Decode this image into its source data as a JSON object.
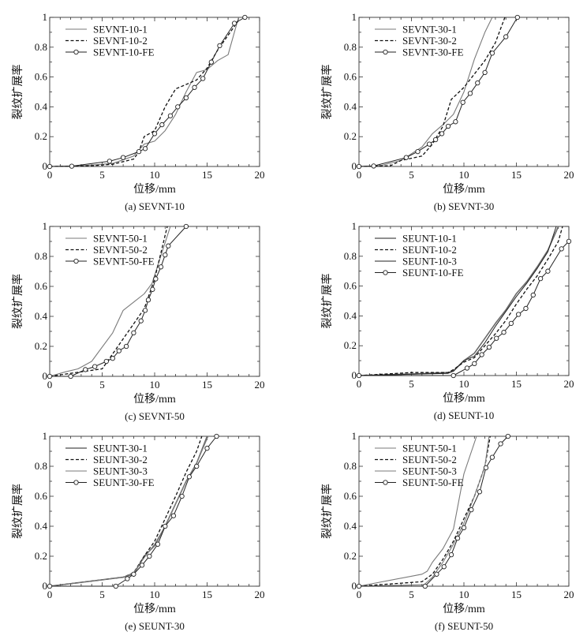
{
  "chart_data": [
    {
      "type": "line",
      "panel": "a",
      "caption": "(a) SEVNT-10",
      "xlabel": "位移/mm",
      "ylabel": "裂纹扩展率",
      "xlim": [
        0,
        20
      ],
      "ylim": [
        0,
        1
      ],
      "xticks": [
        "0",
        "5",
        "10",
        "15",
        "20"
      ],
      "yticks": [
        "0",
        "0.2",
        "0.4",
        "0.6",
        "0.8",
        "1"
      ],
      "legend": "top-left",
      "series": [
        {
          "name": "SEVNT-10-1",
          "style": "gray",
          "x": [
            0,
            3,
            6,
            8,
            9,
            10,
            11,
            12,
            13,
            14,
            15,
            16,
            17,
            18
          ],
          "y": [
            0,
            0.005,
            0.02,
            0.07,
            0.15,
            0.17,
            0.24,
            0.35,
            0.5,
            0.63,
            0.65,
            0.71,
            0.75,
            1
          ]
        },
        {
          "name": "SEVNT-10-2",
          "style": "dashed",
          "x": [
            0,
            4,
            6,
            8,
            8.5,
            9,
            10,
            11,
            12,
            14,
            15,
            16,
            17,
            18
          ],
          "y": [
            0,
            0.005,
            0.015,
            0.05,
            0.1,
            0.2,
            0.24,
            0.4,
            0.52,
            0.58,
            0.66,
            0.78,
            0.88,
            0.98
          ]
        },
        {
          "name": "SEVNT-10-FE",
          "style": "fe",
          "x": [
            0,
            2.1,
            5.7,
            7,
            8.5,
            9.1,
            10,
            10.7,
            11.5,
            12.2,
            13,
            13.8,
            14.6,
            15.4,
            16.2,
            17.6,
            18.6
          ],
          "y": [
            0,
            0.002,
            0.035,
            0.06,
            0.1,
            0.12,
            0.22,
            0.28,
            0.34,
            0.4,
            0.46,
            0.53,
            0.59,
            0.7,
            0.81,
            0.96,
            1
          ]
        }
      ]
    },
    {
      "type": "line",
      "panel": "b",
      "caption": "(b) SEVNT-30",
      "xlabel": "位移/mm",
      "ylabel": "裂纹扩展率",
      "xlim": [
        0,
        20
      ],
      "ylim": [
        0,
        1
      ],
      "xticks": [
        "0",
        "5",
        "10",
        "15",
        "20"
      ],
      "yticks": [
        "0",
        "0.2",
        "0.4",
        "0.6",
        "0.8",
        "1"
      ],
      "legend": "top-left",
      "series": [
        {
          "name": "SEVNT-30-1",
          "style": "gray",
          "x": [
            0,
            2,
            4,
            6,
            7,
            8,
            9,
            10,
            11,
            12,
            12.7
          ],
          "y": [
            0,
            0.005,
            0.04,
            0.13,
            0.22,
            0.28,
            0.35,
            0.5,
            0.72,
            0.9,
            1
          ]
        },
        {
          "name": "SEVNT-30-2",
          "style": "dashed",
          "x": [
            0,
            3,
            4,
            6,
            7,
            8,
            8.8,
            10,
            11,
            12,
            13,
            13.9
          ],
          "y": [
            0,
            0.005,
            0.04,
            0.07,
            0.15,
            0.27,
            0.45,
            0.53,
            0.62,
            0.71,
            0.83,
            1
          ]
        },
        {
          "name": "SEVNT-30-FE",
          "style": "fe",
          "x": [
            0,
            1.4,
            4.5,
            5.6,
            6.7,
            7.3,
            7.9,
            8.5,
            9.2,
            9.9,
            10.6,
            11.3,
            12,
            12.7,
            14,
            15.1
          ],
          "y": [
            0,
            0.003,
            0.06,
            0.1,
            0.15,
            0.18,
            0.22,
            0.27,
            0.3,
            0.43,
            0.49,
            0.56,
            0.63,
            0.76,
            0.87,
            1
          ]
        }
      ]
    },
    {
      "type": "line",
      "panel": "c",
      "caption": "(c) SEVNT-50",
      "xlabel": "位移/mm",
      "ylabel": "裂纹扩展率",
      "xlim": [
        0,
        20
      ],
      "ylim": [
        0,
        1
      ],
      "xticks": [
        "0",
        "5",
        "10",
        "15",
        "20"
      ],
      "yticks": [
        "0",
        "0.2",
        "0.4",
        "0.6",
        "0.8",
        "1"
      ],
      "legend": "top-left",
      "series": [
        {
          "name": "SEVNT-50-1",
          "style": "gray",
          "x": [
            0,
            1.5,
            2.7,
            4,
            6,
            7,
            9,
            9.75,
            11.5
          ],
          "y": [
            0,
            0.03,
            0.05,
            0.1,
            0.29,
            0.44,
            0.55,
            0.62,
            1
          ]
        },
        {
          "name": "SEVNT-50-2",
          "style": "dashed",
          "x": [
            0,
            2,
            5,
            5.5,
            7,
            9,
            10,
            11.2
          ],
          "y": [
            0,
            0.02,
            0.05,
            0.1,
            0.25,
            0.45,
            0.65,
            1
          ]
        },
        {
          "name": "SEVNT-50-FE",
          "style": "fe",
          "x": [
            0,
            2,
            3.4,
            4.3,
            5.4,
            6,
            6.6,
            7.3,
            8,
            8.7,
            9.1,
            9.4,
            9.8,
            10.1,
            10.6,
            11,
            11.3,
            13
          ],
          "y": [
            0,
            0,
            0.045,
            0.065,
            0.1,
            0.12,
            0.17,
            0.2,
            0.29,
            0.37,
            0.44,
            0.51,
            0.58,
            0.65,
            0.73,
            0.81,
            0.87,
            1
          ]
        }
      ]
    },
    {
      "type": "line",
      "panel": "d",
      "caption": "(d) SEUNT-10",
      "xlabel": "位移/mm",
      "ylabel": "裂纹扩展率",
      "xlim": [
        0,
        20
      ],
      "ylim": [
        0,
        1
      ],
      "xticks": [
        "0",
        "5",
        "10",
        "15",
        "20"
      ],
      "yticks": [
        "0",
        "0.2",
        "0.4",
        "0.6",
        "0.8",
        "1"
      ],
      "legend": "top-left",
      "series": [
        {
          "name": "SEUNT-10-1",
          "style": "gray-thick",
          "x": [
            0,
            5,
            8.5,
            9,
            10,
            11,
            12,
            13,
            14,
            15,
            16,
            17,
            18,
            19
          ],
          "y": [
            0,
            0.01,
            0.02,
            0.03,
            0.1,
            0.15,
            0.25,
            0.35,
            0.44,
            0.55,
            0.63,
            0.73,
            0.84,
            1
          ]
        },
        {
          "name": "SEUNT-10-2",
          "style": "dashed",
          "x": [
            0,
            5,
            8.5,
            9,
            10,
            11,
            12,
            13,
            14,
            15,
            16,
            17,
            18,
            19,
            19.4
          ],
          "y": [
            0,
            0.02,
            0.02,
            0.04,
            0.09,
            0.12,
            0.2,
            0.28,
            0.37,
            0.48,
            0.58,
            0.67,
            0.78,
            0.9,
            1
          ]
        },
        {
          "name": "SEUNT-10-3",
          "style": "black",
          "x": [
            0,
            8.5,
            9,
            10,
            11,
            12,
            13,
            14,
            15,
            16,
            17,
            18,
            18.8
          ],
          "y": [
            0,
            0.015,
            0.03,
            0.1,
            0.13,
            0.22,
            0.33,
            0.43,
            0.53,
            0.62,
            0.72,
            0.83,
            1
          ]
        },
        {
          "name": "SEUNT-10-FE",
          "style": "fe",
          "x": [
            0,
            9,
            10.3,
            11,
            11.7,
            12.4,
            13.1,
            13.8,
            14.5,
            15.2,
            15.9,
            16.6,
            17.3,
            18,
            19.3,
            20
          ],
          "y": [
            0,
            0,
            0.05,
            0.08,
            0.14,
            0.19,
            0.25,
            0.29,
            0.35,
            0.41,
            0.45,
            0.54,
            0.65,
            0.7,
            0.85,
            0.9
          ]
        }
      ]
    },
    {
      "type": "line",
      "panel": "e",
      "caption": "(e) SEUNT-30",
      "xlabel": "位移/mm",
      "ylabel": "裂纹扩展率",
      "xlim": [
        0,
        20
      ],
      "ylim": [
        0,
        1
      ],
      "xticks": [
        "0",
        "5",
        "10",
        "15",
        "20"
      ],
      "yticks": [
        "0",
        "0.2",
        "0.4",
        "0.6",
        "0.8",
        "1"
      ],
      "legend": "top-left",
      "series": [
        {
          "name": "SEUNT-30-1",
          "style": "gray-thick",
          "x": [
            0,
            7,
            8,
            9,
            10,
            11,
            12,
            13,
            14,
            15
          ],
          "y": [
            0,
            0.06,
            0.08,
            0.2,
            0.27,
            0.4,
            0.55,
            0.7,
            0.82,
            1
          ]
        },
        {
          "name": "SEUNT-30-2",
          "style": "dashed",
          "x": [
            0,
            7,
            8,
            9,
            10,
            11,
            12,
            13,
            14,
            14.5
          ],
          "y": [
            0,
            0.06,
            0.09,
            0.2,
            0.3,
            0.45,
            0.6,
            0.76,
            0.9,
            1
          ]
        },
        {
          "name": "SEUNT-30-3",
          "style": "gray",
          "x": [
            0,
            7,
            8,
            9,
            10,
            11,
            12,
            13,
            14,
            15.1
          ],
          "y": [
            0,
            0.06,
            0.09,
            0.19,
            0.28,
            0.4,
            0.55,
            0.7,
            0.82,
            1
          ]
        },
        {
          "name": "SEUNT-30-FE",
          "style": "fe",
          "x": [
            0,
            6.3,
            7.4,
            8,
            8.8,
            9.5,
            10.3,
            11,
            11.8,
            12.6,
            13.3,
            14,
            15,
            15.9
          ],
          "y": [
            0,
            0,
            0.05,
            0.08,
            0.14,
            0.2,
            0.28,
            0.4,
            0.47,
            0.6,
            0.73,
            0.8,
            0.92,
            1
          ]
        }
      ]
    },
    {
      "type": "line",
      "panel": "f",
      "caption": "(f) SEUNT-50",
      "xlabel": "位移/mm",
      "ylabel": "裂纹扩展率",
      "xlim": [
        0,
        20
      ],
      "ylim": [
        0,
        1
      ],
      "xticks": [
        "0",
        "5",
        "10",
        "15",
        "20"
      ],
      "yticks": [
        "0",
        "0.2",
        "0.4",
        "0.6",
        "0.8",
        "1"
      ],
      "legend": "top-left",
      "series": [
        {
          "name": "SEUNT-50-1",
          "style": "gray",
          "x": [
            0,
            6,
            6.5,
            7,
            8,
            9,
            10,
            11.2
          ],
          "y": [
            0,
            0.08,
            0.1,
            0.16,
            0.25,
            0.38,
            0.75,
            1
          ]
        },
        {
          "name": "SEUNT-50-2",
          "style": "dashed",
          "x": [
            0,
            6,
            7,
            8,
            9,
            10,
            11,
            12,
            12.5
          ],
          "y": [
            0,
            0.03,
            0.08,
            0.18,
            0.3,
            0.45,
            0.6,
            0.8,
            1
          ]
        },
        {
          "name": "SEUNT-50-3",
          "style": "gray",
          "x": [
            0,
            6.2,
            7,
            8,
            9,
            10,
            11,
            12,
            12.4
          ],
          "y": [
            0,
            0.01,
            0.06,
            0.16,
            0.28,
            0.42,
            0.6,
            0.8,
            1
          ]
        },
        {
          "name": "SEUNT-50-FE",
          "style": "fe",
          "x": [
            0,
            6.3,
            7.4,
            8.1,
            8.8,
            9.4,
            10,
            10.7,
            11.5,
            12.1,
            12.7,
            13.5,
            14.2
          ],
          "y": [
            0,
            0,
            0.08,
            0.13,
            0.21,
            0.32,
            0.39,
            0.51,
            0.63,
            0.79,
            0.86,
            0.95,
            1
          ]
        }
      ]
    }
  ]
}
